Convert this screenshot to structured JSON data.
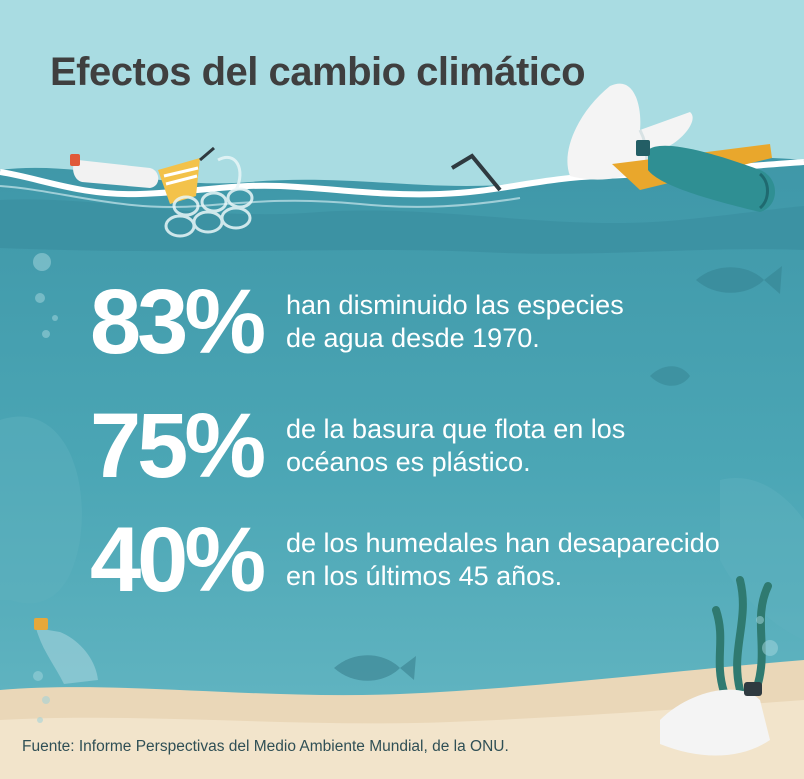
{
  "title": "Efectos del cambio climático",
  "stats": [
    {
      "value": "83%",
      "line1": "han disminuido las especies",
      "line2": "de agua desde 1970."
    },
    {
      "value": "75%",
      "line1": "de la basura que flota en los",
      "line2": "océanos es plástico."
    },
    {
      "value": "40%",
      "line1": "de los humedales han desaparecido",
      "line2": "en los últimos 45 años."
    }
  ],
  "source": "Fuente: Informe Perspectivas del Medio Ambiente Mundial, de la ONU.",
  "colors": {
    "sky": "#a9dce2",
    "ocean": "#4aa3b2",
    "sand": "#ead7b8",
    "title": "#3f3f3f",
    "text": "#ffffff"
  },
  "illustrations": [
    "plastic-bottle-icon",
    "plastic-cup-icon",
    "six-pack-ring-icon",
    "plastic-bag-icon",
    "fish-icon",
    "seaweed-icon",
    "bubble-icon"
  ]
}
